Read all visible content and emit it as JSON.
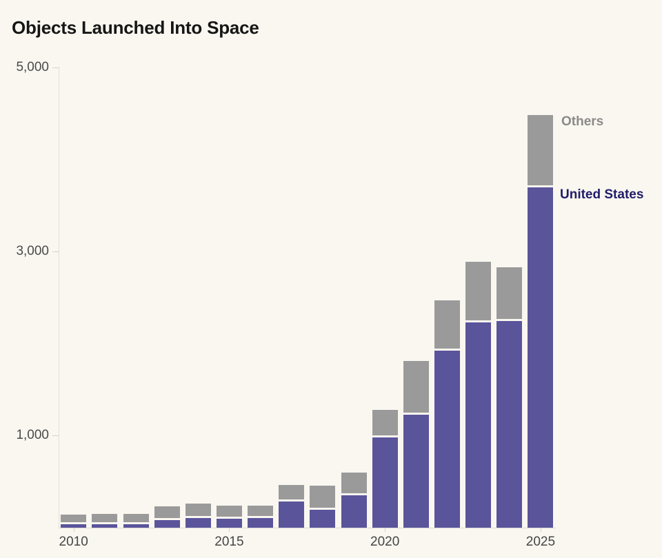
{
  "title": "Objects Launched Into Space",
  "colors": {
    "background": "#FAF7F0",
    "united_states_bar": "#5A549B",
    "others_bar": "#9A9A9A",
    "united_states_label": "#211C6A",
    "others_label": "#8A8A8A",
    "axis_line": "#E0DCD4",
    "tick_label": "#4A4A4A",
    "title_text": "#161616"
  },
  "series_labels": {
    "others": "Others",
    "united_states": "United States"
  },
  "chart_data": {
    "type": "bar",
    "stacked": true,
    "title": "Objects Launched Into Space",
    "categories": [
      2010,
      2011,
      2012,
      2013,
      2014,
      2015,
      2016,
      2017,
      2018,
      2019,
      2020,
      2021,
      2022,
      2023,
      2024,
      2025
    ],
    "series": [
      {
        "name": "United States",
        "color": "#5A549B",
        "values": [
          35,
          35,
          40,
          85,
          105,
          95,
          105,
          285,
          195,
          355,
          980,
          1230,
          1925,
          2230,
          2245,
          3700
        ]
      },
      {
        "name": "Others",
        "color": "#9A9A9A",
        "values": [
          85,
          95,
          85,
          125,
          135,
          120,
          115,
          160,
          240,
          220,
          275,
          560,
          520,
          640,
          565,
          760
        ]
      }
    ],
    "xlabel": "",
    "ylabel": "",
    "ylim": [
      0,
      5000
    ],
    "grid": false,
    "legend_position": "right-of-last-bar",
    "yticks": [
      {
        "value": 1000,
        "label": "1,000"
      },
      {
        "value": 3000,
        "label": "3,000"
      },
      {
        "value": 5000,
        "label": "5,000"
      }
    ],
    "xticks": [
      {
        "value": 2010,
        "label": "2010"
      },
      {
        "value": 2015,
        "label": "2015"
      },
      {
        "value": 2020,
        "label": "2020"
      },
      {
        "value": 2025,
        "label": "2025"
      }
    ],
    "annotations": [
      {
        "text": "Others",
        "series": "Others"
      },
      {
        "text": "United States",
        "series": "United States"
      }
    ]
  }
}
